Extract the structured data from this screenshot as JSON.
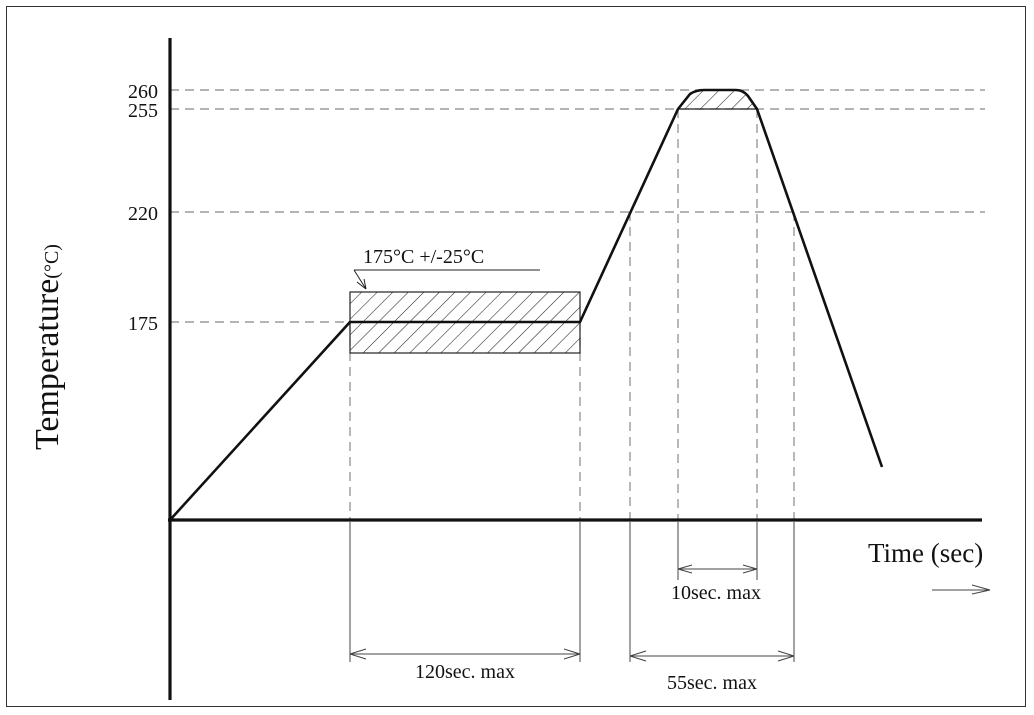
{
  "chart_data": {
    "type": "line",
    "ylabel": "Temperature",
    "ylabel_unit": "(°C)",
    "xlabel": "Time (sec)",
    "y_ticks": [
      {
        "value": 260,
        "label": "260"
      },
      {
        "value": 255,
        "label": "255"
      },
      {
        "value": 220,
        "label": "220"
      },
      {
        "value": 175,
        "label": "175"
      }
    ],
    "soak_band_label": "175°C +/-25°C",
    "intervals": [
      {
        "label": "120sec. max"
      },
      {
        "label": "55sec. max"
      },
      {
        "label": "10sec. max"
      }
    ]
  }
}
